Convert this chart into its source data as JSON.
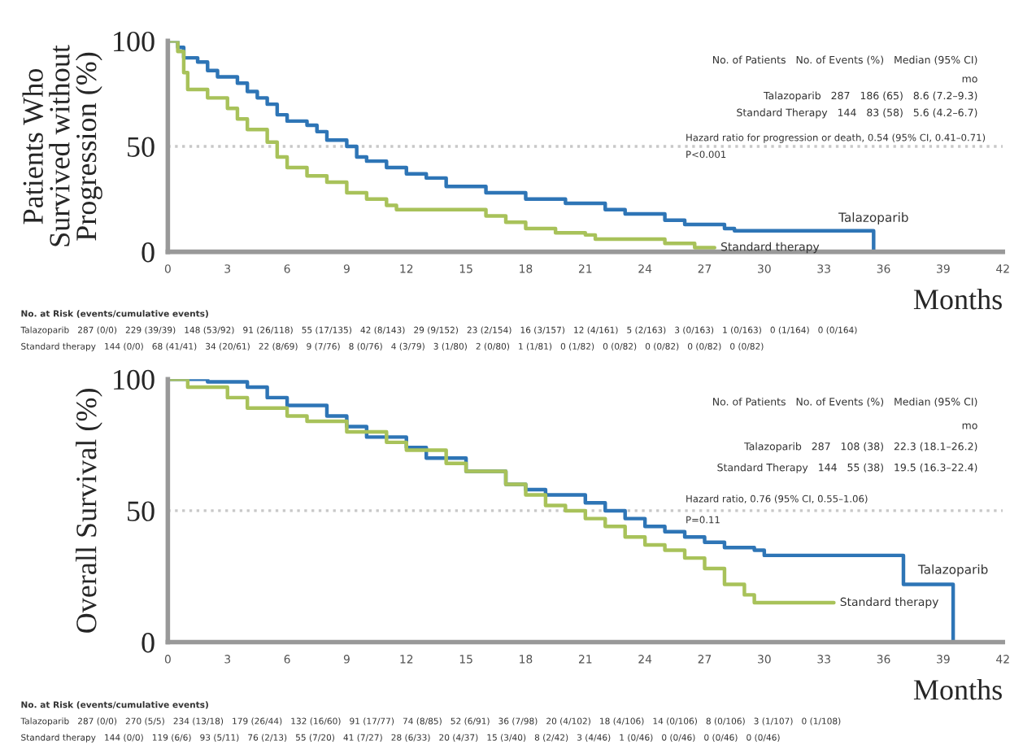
{
  "chart_data": [
    {
      "type": "step",
      "xlabel": "Months",
      "ylabel": "Patients Who\nSurvived without\nProgression (%)",
      "xlim": [
        0,
        42
      ],
      "xticks": [
        0,
        3,
        6,
        9,
        12,
        15,
        18,
        21,
        24,
        27,
        30,
        33,
        36,
        39,
        42
      ],
      "ylim": [
        0,
        100
      ],
      "yticks": [
        0,
        50,
        100
      ],
      "grid": false,
      "legend": false,
      "marker": "none",
      "line_style": "solid",
      "ref_lines": [
        {
          "axis": "y",
          "value": 50,
          "color": "#c8c8c8",
          "line_style": "dotted"
        }
      ],
      "series": [
        {
          "name": "Talazoparib",
          "color": "#2e75b6",
          "x": [
            0,
            0.5,
            0.8,
            1.5,
            2,
            2.5,
            3.5,
            4,
            4.5,
            5,
            5.5,
            6,
            7,
            7.5,
            8,
            9,
            9.5,
            10,
            11,
            12,
            13,
            14,
            16,
            18,
            20,
            22,
            23,
            25,
            26,
            28,
            28.5,
            35.5
          ],
          "values": [
            100,
            97,
            92,
            90,
            86,
            83,
            80,
            76,
            73,
            70,
            65,
            62,
            60,
            57,
            53,
            50,
            45,
            43,
            40,
            37,
            35,
            31,
            28,
            25,
            23,
            20,
            18,
            15,
            13,
            11,
            10,
            0
          ]
        },
        {
          "name": "Standard therapy",
          "color": "#a8c25a",
          "x": [
            0,
            0.5,
            0.8,
            1,
            2,
            3,
            3.5,
            4,
            5,
            5.5,
            6,
            7,
            8,
            9,
            10,
            11,
            11.5,
            15,
            16,
            17,
            18,
            19.5,
            21,
            21.5,
            25,
            26.5,
            27.5
          ],
          "values": [
            100,
            95,
            85,
            77,
            73,
            68,
            63,
            58,
            52,
            45,
            40,
            36,
            33,
            28,
            25,
            22,
            20,
            20,
            17,
            14,
            11,
            9,
            8,
            6,
            4,
            2,
            2
          ]
        }
      ],
      "annotations": [
        "No. of Patients   No. of Events (%)   Median (95% CI)",
        "mo",
        "Talazoparib   287   186 (65)   8.6 (7.2–9.3)",
        "Standard Therapy   144   83 (58)   5.6 (4.2–6.7)",
        "Hazard ratio for progression or death, 0.54 (95% CI, 0.41–0.71)",
        "P<0.001",
        "No. at Risk (events/cumulative events)",
        "Talazoparib   287 (0/0)   229 (39/39)   148 (53/92)   91 (26/118)   55 (17/135)   42 (8/143)   29 (9/152)   23 (2/154)   16 (3/157)   12 (4/161)   5 (2/163)   3 (0/163)   1 (0/163)   0 (1/164)   0 (0/164)",
        "Standard therapy   144 (0/0)   68 (41/41)   34 (20/61)   22 (8/69)   9 (7/76)   8 (0/76)   4 (3/79)   3 (1/80)   2 (0/80)   1 (1/81)   0 (1/82)   0 (0/82)   0 (0/82)   0 (0/82)   0 (0/82)"
      ]
    },
    {
      "type": "step",
      "xlabel": "Months",
      "ylabel": "Overall Survival (%)",
      "xlim": [
        0,
        42
      ],
      "xticks": [
        0,
        3,
        6,
        9,
        12,
        15,
        18,
        21,
        24,
        27,
        30,
        33,
        36,
        39,
        42
      ],
      "ylim": [
        0,
        100
      ],
      "yticks": [
        0,
        50,
        100
      ],
      "grid": false,
      "legend": false,
      "marker": "none",
      "line_style": "solid",
      "ref_lines": [
        {
          "axis": "y",
          "value": 50,
          "color": "#c8c8c8",
          "line_style": "dotted"
        }
      ],
      "series": [
        {
          "name": "Talazoparib",
          "color": "#2e75b6",
          "x": [
            0,
            2,
            4,
            5,
            6,
            8,
            9,
            10,
            12,
            13,
            15,
            17,
            18,
            19,
            21,
            22,
            23,
            24,
            25,
            26,
            27,
            28,
            29.5,
            30,
            36.5,
            37,
            39.5
          ],
          "values": [
            100,
            99,
            97,
            93,
            90,
            86,
            82,
            78,
            74,
            70,
            65,
            60,
            58,
            56,
            53,
            50,
            47,
            44,
            42,
            40,
            38,
            36,
            35,
            33,
            33,
            22,
            0
          ]
        },
        {
          "name": "Standard therapy",
          "color": "#a8c25a",
          "x": [
            0,
            1,
            3,
            4,
            6,
            7,
            9,
            11,
            12,
            14,
            15,
            17,
            18,
            19,
            20,
            21,
            22,
            23,
            24,
            25,
            26,
            27,
            28,
            29,
            29.5,
            33.5
          ],
          "values": [
            100,
            97,
            93,
            89,
            86,
            84,
            80,
            76,
            73,
            68,
            65,
            60,
            56,
            52,
            50,
            47,
            44,
            40,
            37,
            35,
            32,
            28,
            22,
            18,
            15,
            15
          ]
        }
      ],
      "annotations": [
        "No. of Patients   No. of Events (%)   Median (95% CI)",
        "mo",
        "Talazoparib   287   108 (38)   22.3 (18.1–26.2)",
        "Standard Therapy   144   55 (38)   19.5 (16.3–22.4)",
        "Hazard ratio, 0.76 (95% CI, 0.55–1.06)",
        "P=0.11",
        "No. at Risk (events/cumulative events)",
        "Talazoparib   287 (0/0)   270 (5/5)   234 (13/18)   179 (26/44)   132 (16/60)   91 (17/77)   74 (8/85)   52 (6/91)   36 (7/98)   20 (4/102)   18 (4/106)   14 (0/106)   8 (0/106)   3 (1/107)   0 (1/108)",
        "Standard therapy   144 (0/0)   119 (6/6)   93 (5/11)   76 (2/13)   55 (7/20)   41 (7/27)   28 (6/33)   20 (4/37)   15 (3/40)   8 (2/42)   3 (4/46)   1 (0/46)   0 (0/46)   0 (0/46)   0 (0/46)"
      ]
    }
  ]
}
